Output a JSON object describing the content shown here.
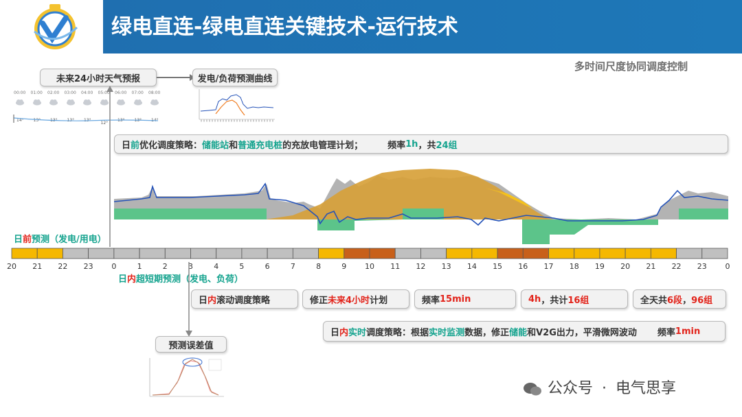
{
  "header": {
    "title": "绿电直连-绿电直连关键技术-运行技术"
  },
  "subtitle": "多时间尺度协同调度控制",
  "weather": {
    "label": "未来24小时天气预报",
    "times": [
      "00:00",
      "01:00",
      "02:00",
      "03:00",
      "04:00",
      "05:00",
      "06:00",
      "07:00",
      "08:00"
    ],
    "temps": [
      "14°",
      "13°",
      "13°",
      "13°",
      "13°",
      "12°",
      "13°",
      "13°",
      "14°"
    ]
  },
  "forecast_curve_label": "发电/负荷预测曲线",
  "day_ahead_strategy": {
    "p1": "日",
    "p2": "前",
    "p3": "优化调度策略：",
    "p4": "储能站",
    "p5": "和",
    "p6": "普通充电桩",
    "p7": "的充放电管理计划；",
    "p8": "频率",
    "p9": "1h",
    "p10": "，共",
    "p11": "24组"
  },
  "day_ahead_forecast": {
    "p1": "日",
    "p2": "前",
    "p3": "预测（发电/用电）"
  },
  "timeline": {
    "ticks": [
      "20",
      "21",
      "22",
      "23",
      "0",
      "1",
      "2",
      "3",
      "4",
      "5",
      "6",
      "7",
      "8",
      "9",
      "10",
      "11",
      "12",
      "13",
      "14",
      "15",
      "16",
      "17",
      "18",
      "19",
      "20",
      "21",
      "22",
      "23",
      "0"
    ],
    "segment_colors": [
      "#f5b800",
      "#f5b800",
      "#c0c0c0",
      "#c0c0c0",
      "#c0c0c0",
      "#c0c0c0",
      "#c0c0c0",
      "#c0c0c0",
      "#c0c0c0",
      "#c0c0c0",
      "#c0c0c0",
      "#c0c0c0",
      "#f5b800",
      "#c8601a",
      "#c8601a",
      "#c0c0c0",
      "#c0c0c0",
      "#f5b800",
      "#f5b800",
      "#c8601a",
      "#c8601a",
      "#f5b800",
      "#f5b800",
      "#f5b800",
      "#f5b800",
      "#f5b800",
      "#c0c0c0",
      "#c0c0c0"
    ]
  },
  "intraday_forecast": {
    "p1": "日",
    "p2": "内",
    "p3": "超短期预测（发电、负荷）"
  },
  "intraday_row": {
    "b1_p1": "日",
    "b1_p2": "内",
    "b1_p3": "滚动调度策略",
    "b2_p1": "修正",
    "b2_p2": "未来4小时",
    "b2_p3": "计划",
    "b3_p1": "频率",
    "b3_p2": "15min",
    "b4_p1": "4h",
    "b4_p2": "，共计",
    "b4_p3": "16组",
    "b5_p1": "全天共",
    "b5_p2": "6段",
    "b5_p3": "，",
    "b5_p4": "96组"
  },
  "realtime_strategy": {
    "p1": "日",
    "p2": "内",
    "p3": "实时",
    "p4": "调度策略：根据",
    "p5": "实时监测",
    "p6": "数据，修正",
    "p7": "储能",
    "p8": "和V2G出力，平滑微网波动",
    "p9": "频率",
    "p10": "1min"
  },
  "forecast_error_label": "预测误差值",
  "footer": {
    "dot": "·",
    "left": "公众号",
    "right": "电气思享"
  },
  "colors": {
    "header_blue": "#1e78b8",
    "gray_area": "#b3b3b3",
    "orange_area": "#d7a13a",
    "green_area": "#5cc48a",
    "blue_line": "#2452b8",
    "accent_red": "#e2231a",
    "accent_teal": "#14a38e"
  }
}
